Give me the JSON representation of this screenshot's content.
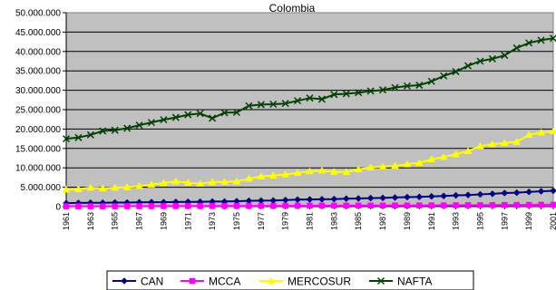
{
  "chart_data": {
    "type": "line",
    "title": "Colombia",
    "xlabel": "",
    "ylabel": "",
    "ylim": [
      0,
      50000000
    ],
    "yticks": [
      "0",
      "5.000.000",
      "10.000.000",
      "15.000.000",
      "20.000.000",
      "25.000.000",
      "30.000.000",
      "35.000.000",
      "40.000.000",
      "45.000.000",
      "50.000.000"
    ],
    "xtick_labels": [
      "1961",
      "1963",
      "1965",
      "1967",
      "1969",
      "1971",
      "1973",
      "1975",
      "1977",
      "1979",
      "1981",
      "1983",
      "1985",
      "1987",
      "1989",
      "1991",
      "1993",
      "1995",
      "1997",
      "1999",
      "2001"
    ],
    "x": [
      1961,
      1962,
      1963,
      1964,
      1965,
      1966,
      1967,
      1968,
      1969,
      1970,
      1971,
      1972,
      1973,
      1974,
      1975,
      1976,
      1977,
      1978,
      1979,
      1980,
      1981,
      1982,
      1983,
      1984,
      1985,
      1986,
      1987,
      1988,
      1989,
      1990,
      1991,
      1992,
      1993,
      1994,
      1995,
      1996,
      1997,
      1998,
      1999,
      2000,
      2001
    ],
    "grid": true,
    "legend": "bottom",
    "plot_background": "#c0c0c0",
    "series": [
      {
        "name": "CAN",
        "color": "#000080",
        "marker": "diamond",
        "values": [
          900000,
          950000,
          1000000,
          1000000,
          1050000,
          1050000,
          1100000,
          1150000,
          1150000,
          1200000,
          1250000,
          1250000,
          1300000,
          1300000,
          1400000,
          1500000,
          1550000,
          1600000,
          1700000,
          1800000,
          1850000,
          1900000,
          1950000,
          2050000,
          2100000,
          2200000,
          2250000,
          2350000,
          2450000,
          2500000,
          2650000,
          2750000,
          2900000,
          3000000,
          3150000,
          3300000,
          3500000,
          3600000,
          3800000,
          3950000,
          4100000
        ]
      },
      {
        "name": "MCCA",
        "color": "#ff00ff",
        "marker": "square",
        "values": [
          100000,
          100000,
          100000,
          100000,
          100000,
          120000,
          120000,
          130000,
          130000,
          140000,
          150000,
          150000,
          160000,
          170000,
          180000,
          190000,
          200000,
          210000,
          220000,
          230000,
          240000,
          250000,
          250000,
          260000,
          270000,
          280000,
          290000,
          300000,
          310000,
          320000,
          330000,
          340000,
          350000,
          360000,
          380000,
          400000,
          420000,
          440000,
          460000,
          480000,
          500000
        ]
      },
      {
        "name": "MERCOSUR",
        "color": "#ffff00",
        "marker": "triangle",
        "values": [
          4400000,
          4500000,
          4900000,
          4700000,
          4900000,
          5000000,
          5300000,
          5700000,
          6100000,
          6500000,
          6200000,
          5900000,
          6300000,
          6400000,
          6500000,
          7200000,
          7800000,
          8000000,
          8300000,
          8700000,
          9100000,
          9300000,
          9000000,
          8900000,
          9600000,
          10100000,
          10300000,
          10500000,
          10900000,
          11300000,
          12200000,
          12800000,
          13500000,
          14300000,
          15600000,
          16100000,
          16400000,
          16700000,
          18500000,
          19100000,
          19400000
        ]
      },
      {
        "name": "NAFTA",
        "color": "#004000",
        "marker": "x",
        "values": [
          17500000,
          17800000,
          18500000,
          19500000,
          19700000,
          20200000,
          21000000,
          21700000,
          22400000,
          23000000,
          23700000,
          24000000,
          22800000,
          24200000,
          24300000,
          26000000,
          26300000,
          26400000,
          26600000,
          27300000,
          28000000,
          27700000,
          28900000,
          29100000,
          29400000,
          29800000,
          30100000,
          30700000,
          31100000,
          31300000,
          32300000,
          33700000,
          34800000,
          36300000,
          37500000,
          38100000,
          39000000,
          40900000,
          42200000,
          42900000,
          43400000
        ]
      }
    ]
  }
}
